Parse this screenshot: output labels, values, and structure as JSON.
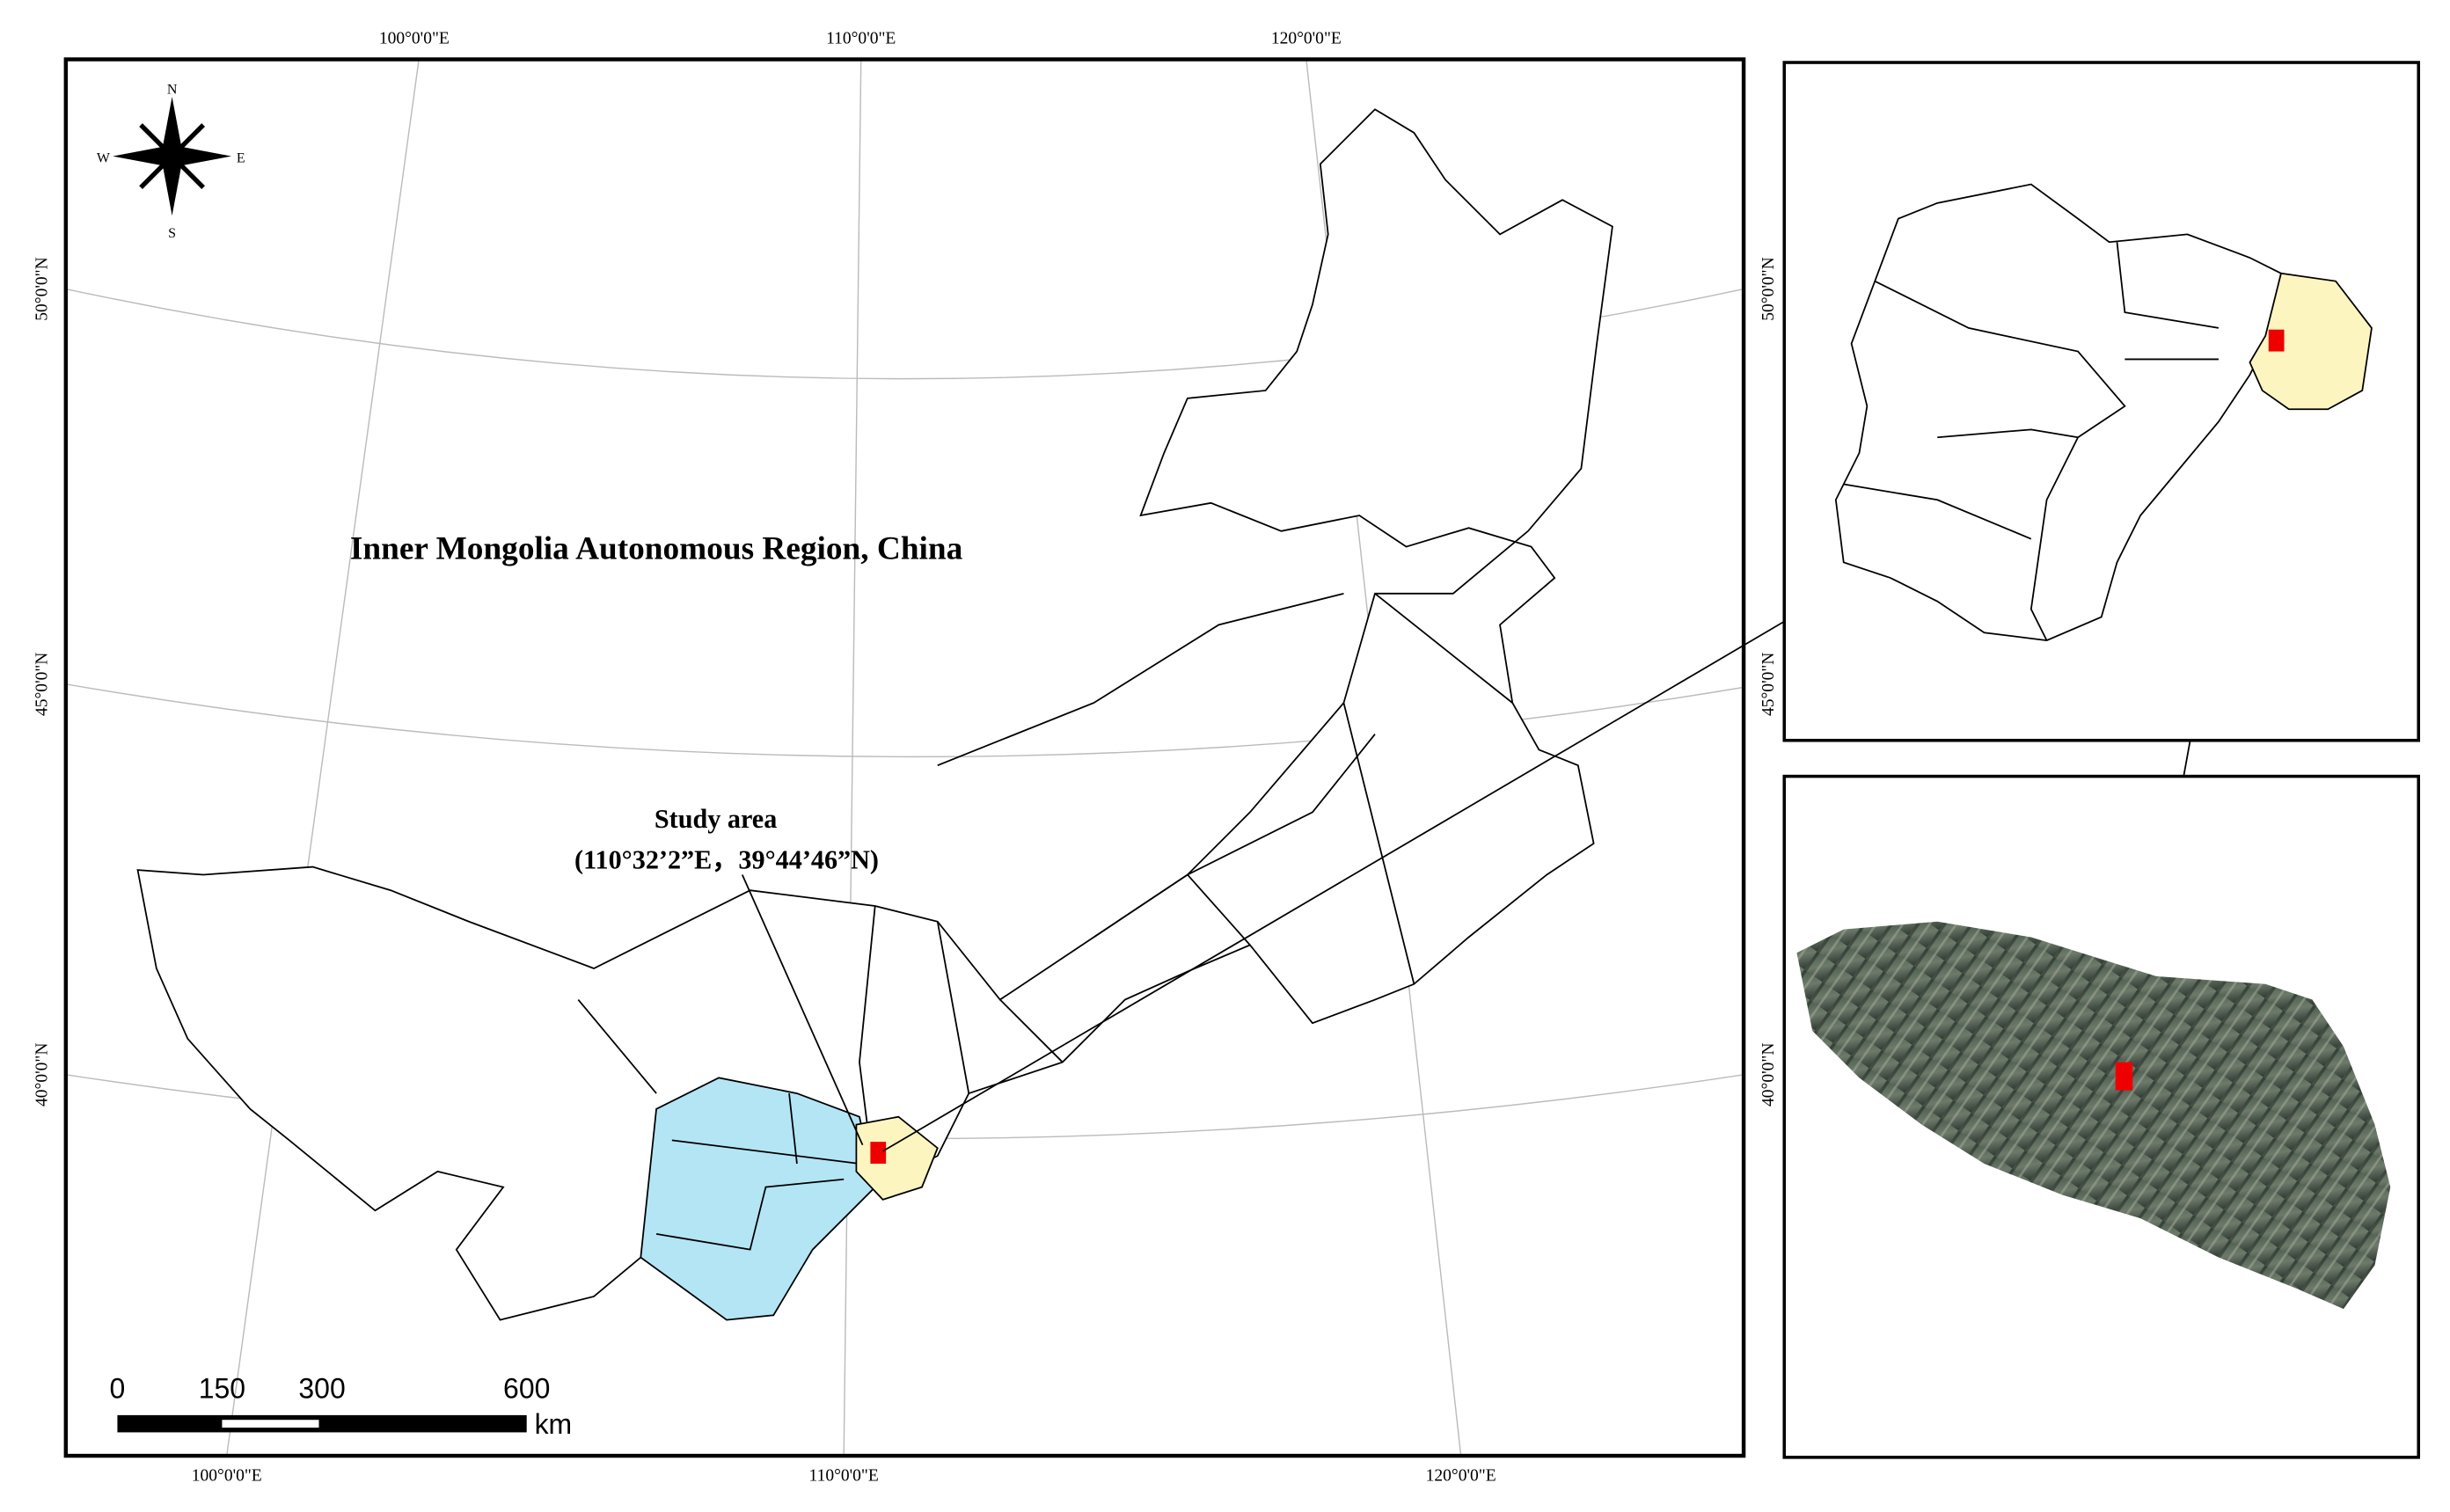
{
  "title": "Inner Mongolia Autonomous Region, China",
  "study_area": {
    "label": "Study area",
    "coordinates": "(110°32’2”E，39°44’46”N)"
  },
  "graticule": {
    "top": [
      "100°0'0\"E",
      "110°0'0\"E",
      "120°0'0\"E"
    ],
    "bottom": [
      "100°0'0\"E",
      "110°0'0\"E",
      "120°0'0\"E"
    ],
    "left": [
      "50°0'0\"N",
      "45°0'0\"N",
      "40°0'0\"N"
    ],
    "inset_right": [
      "50°0'0\"N",
      "45°0'0\"N",
      "40°0'0\"N"
    ]
  },
  "compass": {
    "north": "N",
    "south": "S",
    "east": "E",
    "west": "W"
  },
  "scale_bar": {
    "labels": [
      0,
      150,
      300,
      600
    ],
    "unit": "km"
  }
}
